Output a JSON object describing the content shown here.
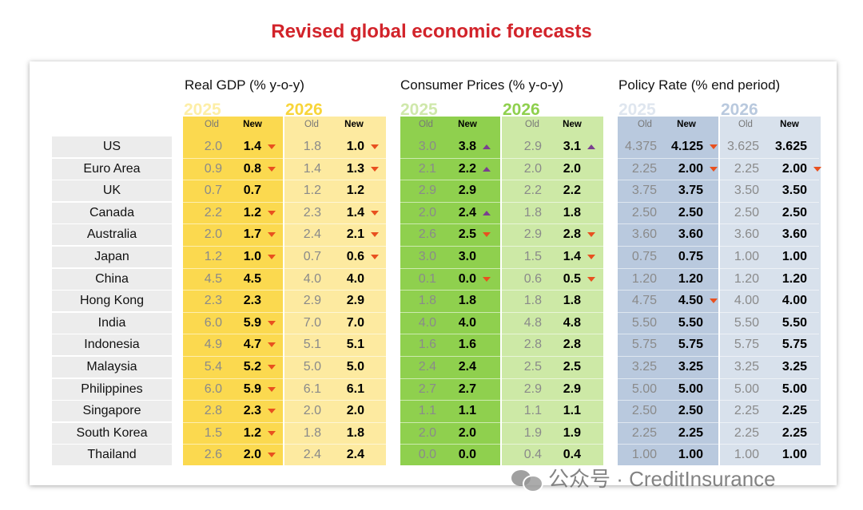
{
  "title": "Revised global economic forecasts",
  "groups": [
    {
      "label": "Real GDP (% y-o-y)"
    },
    {
      "label": "Consumer Prices (% y-o-y)"
    },
    {
      "label": "Policy Rate (% end period)"
    }
  ],
  "years": [
    "2025",
    "2026"
  ],
  "sub_headers": {
    "old": "Old",
    "new": "New"
  },
  "colors": {
    "gdp_2025": "#fbd94f",
    "gdp_2026": "#fdeaa0",
    "cpi_2025": "#8fd04e",
    "cpi_2026": "#cde9a6",
    "rate_2025": "#b9c9de",
    "rate_2026": "#d8e1ec",
    "down_arrow": "#e8501f",
    "up_arrow": "#7a3f8f",
    "title": "#d2232a"
  },
  "rows": [
    {
      "country": "US",
      "gdp25_old": "2.0",
      "gdp25_new": "1.4",
      "gdp25_dir": "down",
      "gdp26_old": "1.8",
      "gdp26_new": "1.0",
      "gdp26_dir": "down",
      "cpi25_old": "3.0",
      "cpi25_new": "3.8",
      "cpi25_dir": "up",
      "cpi26_old": "2.9",
      "cpi26_new": "3.1",
      "cpi26_dir": "up",
      "r25_old": "4.375",
      "r25_new": "4.125",
      "r25_dir": "down",
      "r26_old": "3.625",
      "r26_new": "3.625",
      "r26_dir": ""
    },
    {
      "country": "Euro Area",
      "gdp25_old": "0.9",
      "gdp25_new": "0.8",
      "gdp25_dir": "down",
      "gdp26_old": "1.4",
      "gdp26_new": "1.3",
      "gdp26_dir": "down",
      "cpi25_old": "2.1",
      "cpi25_new": "2.2",
      "cpi25_dir": "up",
      "cpi26_old": "2.0",
      "cpi26_new": "2.0",
      "cpi26_dir": "",
      "r25_old": "2.25",
      "r25_new": "2.00",
      "r25_dir": "down",
      "r26_old": "2.25",
      "r26_new": "2.00",
      "r26_dir": "down"
    },
    {
      "country": "UK",
      "gdp25_old": "0.7",
      "gdp25_new": "0.7",
      "gdp25_dir": "",
      "gdp26_old": "1.2",
      "gdp26_new": "1.2",
      "gdp26_dir": "",
      "cpi25_old": "2.9",
      "cpi25_new": "2.9",
      "cpi25_dir": "",
      "cpi26_old": "2.2",
      "cpi26_new": "2.2",
      "cpi26_dir": "",
      "r25_old": "3.75",
      "r25_new": "3.75",
      "r25_dir": "",
      "r26_old": "3.50",
      "r26_new": "3.50",
      "r26_dir": ""
    },
    {
      "country": "Canada",
      "gdp25_old": "2.2",
      "gdp25_new": "1.2",
      "gdp25_dir": "down",
      "gdp26_old": "2.3",
      "gdp26_new": "1.4",
      "gdp26_dir": "down",
      "cpi25_old": "2.0",
      "cpi25_new": "2.4",
      "cpi25_dir": "up",
      "cpi26_old": "1.8",
      "cpi26_new": "1.8",
      "cpi26_dir": "",
      "r25_old": "2.50",
      "r25_new": "2.50",
      "r25_dir": "",
      "r26_old": "2.50",
      "r26_new": "2.50",
      "r26_dir": ""
    },
    {
      "country": "Australia",
      "gdp25_old": "2.0",
      "gdp25_new": "1.7",
      "gdp25_dir": "down",
      "gdp26_old": "2.4",
      "gdp26_new": "2.1",
      "gdp26_dir": "down",
      "cpi25_old": "2.6",
      "cpi25_new": "2.5",
      "cpi25_dir": "down",
      "cpi26_old": "2.9",
      "cpi26_new": "2.8",
      "cpi26_dir": "down",
      "r25_old": "3.60",
      "r25_new": "3.60",
      "r25_dir": "",
      "r26_old": "3.60",
      "r26_new": "3.60",
      "r26_dir": ""
    },
    {
      "country": "Japan",
      "gdp25_old": "1.2",
      "gdp25_new": "1.0",
      "gdp25_dir": "down",
      "gdp26_old": "0.7",
      "gdp26_new": "0.6",
      "gdp26_dir": "down",
      "cpi25_old": "3.0",
      "cpi25_new": "3.0",
      "cpi25_dir": "",
      "cpi26_old": "1.5",
      "cpi26_new": "1.4",
      "cpi26_dir": "down",
      "r25_old": "0.75",
      "r25_new": "0.75",
      "r25_dir": "",
      "r26_old": "1.00",
      "r26_new": "1.00",
      "r26_dir": ""
    },
    {
      "country": "China",
      "gdp25_old": "4.5",
      "gdp25_new": "4.5",
      "gdp25_dir": "",
      "gdp26_old": "4.0",
      "gdp26_new": "4.0",
      "gdp26_dir": "",
      "cpi25_old": "0.1",
      "cpi25_new": "0.0",
      "cpi25_dir": "down",
      "cpi26_old": "0.6",
      "cpi26_new": "0.5",
      "cpi26_dir": "down",
      "r25_old": "1.20",
      "r25_new": "1.20",
      "r25_dir": "",
      "r26_old": "1.20",
      "r26_new": "1.20",
      "r26_dir": ""
    },
    {
      "country": "Hong Kong",
      "gdp25_old": "2.3",
      "gdp25_new": "2.3",
      "gdp25_dir": "",
      "gdp26_old": "2.9",
      "gdp26_new": "2.9",
      "gdp26_dir": "",
      "cpi25_old": "1.8",
      "cpi25_new": "1.8",
      "cpi25_dir": "",
      "cpi26_old": "1.8",
      "cpi26_new": "1.8",
      "cpi26_dir": "",
      "r25_old": "4.75",
      "r25_new": "4.50",
      "r25_dir": "down",
      "r26_old": "4.00",
      "r26_new": "4.00",
      "r26_dir": ""
    },
    {
      "country": "India",
      "gdp25_old": "6.0",
      "gdp25_new": "5.9",
      "gdp25_dir": "down",
      "gdp26_old": "7.0",
      "gdp26_new": "7.0",
      "gdp26_dir": "",
      "cpi25_old": "4.0",
      "cpi25_new": "4.0",
      "cpi25_dir": "",
      "cpi26_old": "4.8",
      "cpi26_new": "4.8",
      "cpi26_dir": "",
      "r25_old": "5.50",
      "r25_new": "5.50",
      "r25_dir": "",
      "r26_old": "5.50",
      "r26_new": "5.50",
      "r26_dir": ""
    },
    {
      "country": "Indonesia",
      "gdp25_old": "4.9",
      "gdp25_new": "4.7",
      "gdp25_dir": "down",
      "gdp26_old": "5.1",
      "gdp26_new": "5.1",
      "gdp26_dir": "",
      "cpi25_old": "1.6",
      "cpi25_new": "1.6",
      "cpi25_dir": "",
      "cpi26_old": "2.8",
      "cpi26_new": "2.8",
      "cpi26_dir": "",
      "r25_old": "5.75",
      "r25_new": "5.75",
      "r25_dir": "",
      "r26_old": "5.75",
      "r26_new": "5.75",
      "r26_dir": ""
    },
    {
      "country": "Malaysia",
      "gdp25_old": "5.4",
      "gdp25_new": "5.2",
      "gdp25_dir": "down",
      "gdp26_old": "5.0",
      "gdp26_new": "5.0",
      "gdp26_dir": "",
      "cpi25_old": "2.4",
      "cpi25_new": "2.4",
      "cpi25_dir": "",
      "cpi26_old": "2.5",
      "cpi26_new": "2.5",
      "cpi26_dir": "",
      "r25_old": "3.25",
      "r25_new": "3.25",
      "r25_dir": "",
      "r26_old": "3.25",
      "r26_new": "3.25",
      "r26_dir": ""
    },
    {
      "country": "Philippines",
      "gdp25_old": "6.0",
      "gdp25_new": "5.9",
      "gdp25_dir": "down",
      "gdp26_old": "6.1",
      "gdp26_new": "6.1",
      "gdp26_dir": "",
      "cpi25_old": "2.7",
      "cpi25_new": "2.7",
      "cpi25_dir": "",
      "cpi26_old": "2.9",
      "cpi26_new": "2.9",
      "cpi26_dir": "",
      "r25_old": "5.00",
      "r25_new": "5.00",
      "r25_dir": "",
      "r26_old": "5.00",
      "r26_new": "5.00",
      "r26_dir": ""
    },
    {
      "country": "Singapore",
      "gdp25_old": "2.8",
      "gdp25_new": "2.3",
      "gdp25_dir": "down",
      "gdp26_old": "2.0",
      "gdp26_new": "2.0",
      "gdp26_dir": "",
      "cpi25_old": "1.1",
      "cpi25_new": "1.1",
      "cpi25_dir": "",
      "cpi26_old": "1.1",
      "cpi26_new": "1.1",
      "cpi26_dir": "",
      "r25_old": "2.50",
      "r25_new": "2.50",
      "r25_dir": "",
      "r26_old": "2.25",
      "r26_new": "2.25",
      "r26_dir": ""
    },
    {
      "country": "South Korea",
      "gdp25_old": "1.5",
      "gdp25_new": "1.2",
      "gdp25_dir": "down",
      "gdp26_old": "1.8",
      "gdp26_new": "1.8",
      "gdp26_dir": "",
      "cpi25_old": "2.0",
      "cpi25_new": "2.0",
      "cpi25_dir": "",
      "cpi26_old": "1.9",
      "cpi26_new": "1.9",
      "cpi26_dir": "",
      "r25_old": "2.25",
      "r25_new": "2.25",
      "r25_dir": "",
      "r26_old": "2.25",
      "r26_new": "2.25",
      "r26_dir": ""
    },
    {
      "country": "Thailand",
      "gdp25_old": "2.6",
      "gdp25_new": "2.0",
      "gdp25_dir": "down",
      "gdp26_old": "2.4",
      "gdp26_new": "2.4",
      "gdp26_dir": "",
      "cpi25_old": "0.0",
      "cpi25_new": "0.0",
      "cpi25_dir": "",
      "cpi26_old": "0.4",
      "cpi26_new": "0.4",
      "cpi26_dir": "",
      "r25_old": "1.00",
      "r25_new": "1.00",
      "r25_dir": "",
      "r26_old": "1.00",
      "r26_new": "1.00",
      "r26_dir": ""
    }
  ],
  "watermark": "公众号 · CreditInsurance"
}
